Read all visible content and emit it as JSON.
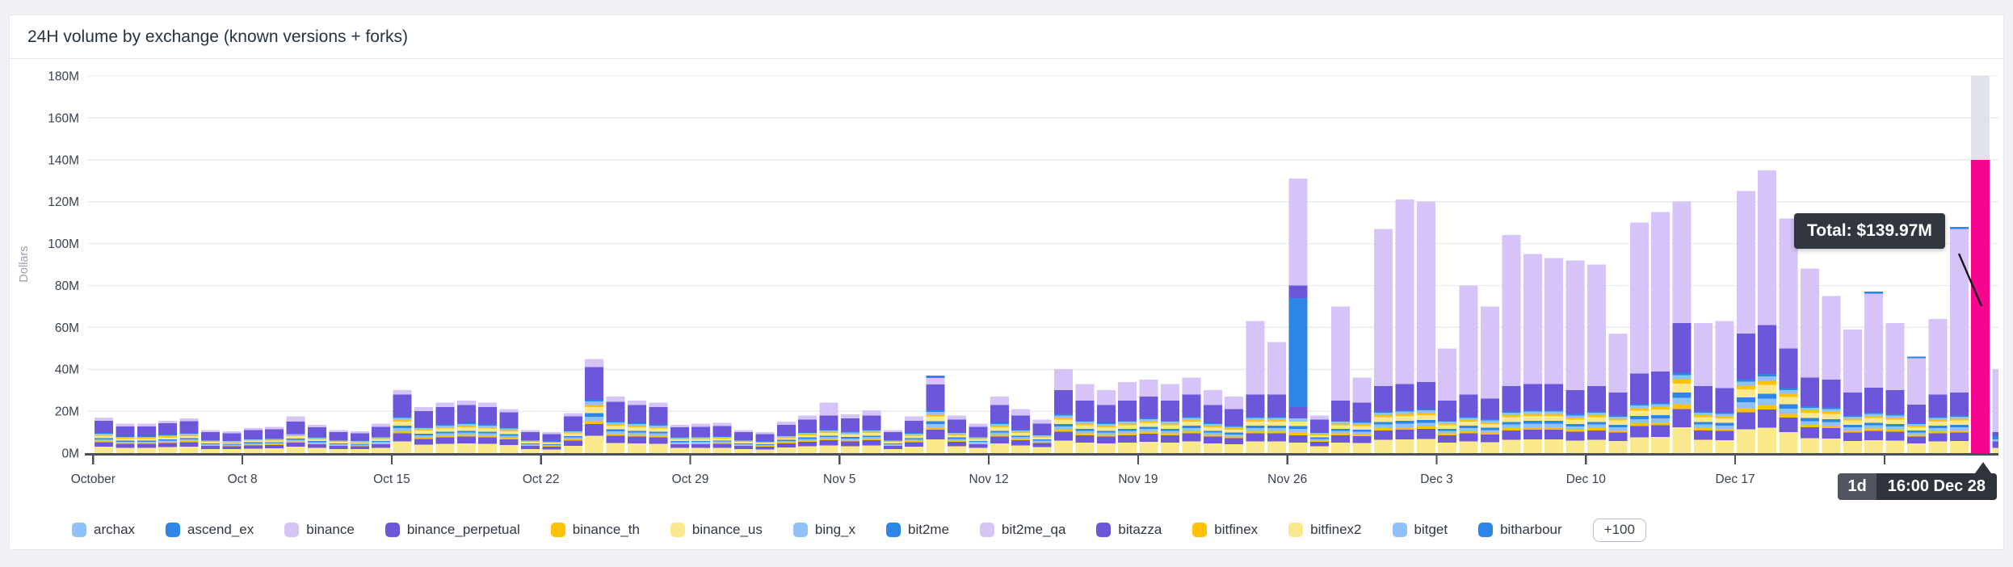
{
  "card": {
    "title": "24H volume by exchange (known versions + forks)"
  },
  "palette": {
    "lightblue": "#8FC2F8",
    "blue": "#2E85E8",
    "lavender": "#D6C4F9",
    "purple": "#6C57DB",
    "gold": "#FFC10A",
    "lightyellow": "#FAE98C",
    "pink": "#F8058F",
    "projection_gray": "#E0E3EA",
    "axis": "#4A505C",
    "grid": "#E9EBEF",
    "tick_text": "#39424E",
    "muted_text": "#99A1AE"
  },
  "chart_data": {
    "type": "bar",
    "stacked": true,
    "title": "24H volume by exchange (known versions + forks)",
    "xlabel": "",
    "ylabel": "Dollars",
    "ylim": [
      0,
      180
    ],
    "grid": true,
    "legend_position": "bottom",
    "y_ticks": [
      {
        "label": "180M",
        "value": 180
      },
      {
        "label": "160M",
        "value": 160
      },
      {
        "label": "140M",
        "value": 140
      },
      {
        "label": "120M",
        "value": 120
      },
      {
        "label": "100M",
        "value": 100
      },
      {
        "label": "80M",
        "value": 80
      },
      {
        "label": "60M",
        "value": 60
      },
      {
        "label": "40M",
        "value": 40
      },
      {
        "label": "20M",
        "value": 20
      },
      {
        "label": "0M",
        "value": 0
      }
    ],
    "x_ticks": [
      {
        "label": "October",
        "day": 0
      },
      {
        "label": "Oct 8",
        "day": 7
      },
      {
        "label": "Oct 15",
        "day": 14
      },
      {
        "label": "Oct 22",
        "day": 21
      },
      {
        "label": "Oct 29",
        "day": 28
      },
      {
        "label": "Nov 5",
        "day": 35
      },
      {
        "label": "Nov 12",
        "day": 42
      },
      {
        "label": "Nov 19",
        "day": 49
      },
      {
        "label": "Nov 26",
        "day": 56
      },
      {
        "label": "Dec 3",
        "day": 63
      },
      {
        "label": "Dec 10",
        "day": 70
      },
      {
        "label": "Dec 17",
        "day": 77
      },
      {
        "label": "",
        "day": 84
      }
    ],
    "series_legend": [
      {
        "label": "archax",
        "color": "lightblue"
      },
      {
        "label": "ascend_ex",
        "color": "blue"
      },
      {
        "label": "binance",
        "color": "lavender"
      },
      {
        "label": "binance_perpetual",
        "color": "purple"
      },
      {
        "label": "binance_th",
        "color": "gold"
      },
      {
        "label": "binance_us",
        "color": "lightyellow"
      },
      {
        "label": "bing_x",
        "color": "lightblue"
      },
      {
        "label": "bit2me",
        "color": "blue"
      },
      {
        "label": "bit2me_qa",
        "color": "lavender"
      },
      {
        "label": "bitazza",
        "color": "purple"
      },
      {
        "label": "bitfinex",
        "color": "gold"
      },
      {
        "label": "bitfinex2",
        "color": "lightyellow"
      },
      {
        "label": "bitget",
        "color": "lightblue"
      },
      {
        "label": "bitharbour",
        "color": "blue"
      }
    ],
    "legend_more": "+100",
    "stack_profile": [
      [
        "lightyellow",
        0.2
      ],
      [
        "purple",
        0.14
      ],
      [
        "gold",
        0.035
      ],
      [
        "lightblue",
        0.05
      ],
      [
        "blue",
        0.04
      ],
      [
        "lightyellow",
        0.07
      ],
      [
        "gold",
        0.03
      ],
      [
        "lightblue",
        0.035
      ],
      [
        "blue",
        0.02
      ],
      [
        "purple",
        0.38
      ]
    ],
    "bars": [
      {
        "d": "Oct 1",
        "t": 17,
        "b": 1.5
      },
      {
        "d": "Oct 2",
        "t": 14,
        "b": 1.2
      },
      {
        "d": "Oct 3",
        "t": 14,
        "b": 1.2
      },
      {
        "d": "Oct 4",
        "t": 15.5,
        "b": 1.3
      },
      {
        "d": "Oct 5",
        "t": 16.5,
        "b": 1.2
      },
      {
        "d": "Oct 6",
        "t": 11,
        "b": 1
      },
      {
        "d": "Oct 7",
        "t": 10.5,
        "b": 1
      },
      {
        "d": "Oct 8",
        "t": 12,
        "b": 1
      },
      {
        "d": "Oct 9",
        "t": 12.5,
        "b": 1.2
      },
      {
        "d": "Oct 10",
        "t": 17.5,
        "b": 2.5
      },
      {
        "d": "Oct 11",
        "t": 13.5,
        "b": 1.2
      },
      {
        "d": "Oct 12",
        "t": 11,
        "b": 1
      },
      {
        "d": "Oct 13",
        "t": 10.5,
        "b": 1
      },
      {
        "d": "Oct 14",
        "t": 14,
        "b": 1.5
      },
      {
        "d": "Oct 15",
        "t": 30,
        "b": 2
      },
      {
        "d": "Oct 16",
        "t": 22,
        "b": 2
      },
      {
        "d": "Oct 17",
        "t": 24,
        "b": 2
      },
      {
        "d": "Oct 18",
        "t": 25,
        "b": 2
      },
      {
        "d": "Oct 19",
        "t": 24,
        "b": 2
      },
      {
        "d": "Oct 20",
        "t": 21,
        "b": 1.5
      },
      {
        "d": "Oct 21",
        "t": 11,
        "b": 1
      },
      {
        "d": "Oct 22",
        "t": 10,
        "b": 1
      },
      {
        "d": "Oct 23",
        "t": 19,
        "b": 1.5
      },
      {
        "d": "Oct 24",
        "t": 45,
        "b": 4
      },
      {
        "d": "Oct 25",
        "t": 27,
        "b": 2.5
      },
      {
        "d": "Oct 26",
        "t": 25,
        "b": 2
      },
      {
        "d": "Oct 27",
        "t": 24,
        "b": 2
      },
      {
        "d": "Oct 28",
        "t": 13.5,
        "b": 1.2
      },
      {
        "d": "Oct 29",
        "t": 14,
        "b": 1.5
      },
      {
        "d": "Oct 30",
        "t": 14.5,
        "b": 1.5
      },
      {
        "d": "Oct 31",
        "t": 11,
        "b": 1
      },
      {
        "d": "Nov 1",
        "t": 10,
        "b": 1
      },
      {
        "d": "Nov 2",
        "t": 15,
        "b": 1.5
      },
      {
        "d": "Nov 3",
        "t": 18,
        "b": 2
      },
      {
        "d": "Nov 4",
        "t": 24,
        "b": 6
      },
      {
        "d": "Nov 5",
        "t": 18.5,
        "b": 2
      },
      {
        "d": "Nov 6",
        "t": 20.5,
        "b": 2.5
      },
      {
        "d": "Nov 7",
        "t": 11,
        "b": 1
      },
      {
        "d": "Nov 8",
        "t": 17.5,
        "b": 2
      },
      {
        "d": "Nov 9",
        "t": 37,
        "b": 3,
        "c": 1.2
      },
      {
        "d": "Nov 10",
        "t": 18,
        "b": 2
      },
      {
        "d": "Nov 11",
        "t": 14,
        "b": 1.5
      },
      {
        "d": "Nov 12",
        "t": 27,
        "b": 4
      },
      {
        "d": "Nov 13",
        "t": 21,
        "b": 3
      },
      {
        "d": "Nov 14",
        "t": 16,
        "b": 2
      },
      {
        "d": "Nov 15",
        "t": 40,
        "b": 10
      },
      {
        "d": "Nov 16",
        "t": 33,
        "b": 8
      },
      {
        "d": "Nov 17",
        "t": 30,
        "b": 7
      },
      {
        "d": "Nov 18",
        "t": 34,
        "b": 9
      },
      {
        "d": "Nov 19",
        "t": 35,
        "b": 8
      },
      {
        "d": "Nov 20",
        "t": 33,
        "b": 8
      },
      {
        "d": "Nov 21",
        "t": 36,
        "b": 8
      },
      {
        "d": "Nov 22",
        "t": 30,
        "b": 7
      },
      {
        "d": "Nov 23",
        "t": 27,
        "b": 6
      },
      {
        "d": "Nov 24",
        "t": 63,
        "b": 35
      },
      {
        "d": "Nov 25",
        "t": 53,
        "b": 25
      },
      {
        "d": "Nov 26",
        "t": 131,
        "s": [
          [
            "lightyellow",
            5
          ],
          [
            "purple",
            3.5
          ],
          [
            "gold",
            1.5
          ],
          [
            "lightblue",
            1.5
          ],
          [
            "blue",
            1.5
          ],
          [
            "lightyellow",
            2
          ],
          [
            "lightblue",
            1.5
          ],
          [
            "purple",
            5.5
          ],
          [
            "blue",
            52
          ],
          [
            "purple",
            6
          ],
          [
            "lavender",
            51
          ]
        ]
      },
      {
        "d": "Nov 27",
        "t": 18,
        "b": 2
      },
      {
        "d": "Nov 28",
        "t": 70,
        "b": 45
      },
      {
        "d": "Nov 29",
        "t": 36,
        "b": 12
      },
      {
        "d": "Nov 30",
        "t": 107,
        "b": 75
      },
      {
        "d": "Dec 1",
        "t": 121,
        "b": 88
      },
      {
        "d": "Dec 2",
        "t": 120,
        "b": 86
      },
      {
        "d": "Dec 3",
        "t": 50,
        "b": 25
      },
      {
        "d": "Dec 4",
        "t": 80,
        "b": 52
      },
      {
        "d": "Dec 5",
        "t": 70,
        "b": 44
      },
      {
        "d": "Dec 6",
        "t": 104,
        "b": 72
      },
      {
        "d": "Dec 7",
        "t": 95,
        "b": 62
      },
      {
        "d": "Dec 8",
        "t": 93,
        "b": 60
      },
      {
        "d": "Dec 9",
        "t": 92,
        "b": 62
      },
      {
        "d": "Dec 10",
        "t": 90,
        "b": 58
      },
      {
        "d": "Dec 11",
        "t": 57,
        "b": 28
      },
      {
        "d": "Dec 12",
        "t": 110,
        "b": 72
      },
      {
        "d": "Dec 13",
        "t": 115,
        "b": 76
      },
      {
        "d": "Dec 14",
        "t": 120,
        "b": 58
      },
      {
        "d": "Dec 15",
        "t": 62,
        "b": 30
      },
      {
        "d": "Dec 16",
        "t": 63,
        "b": 32
      },
      {
        "d": "Dec 17",
        "t": 125,
        "b": 68
      },
      {
        "d": "Dec 18",
        "t": 135,
        "b": 74
      },
      {
        "d": "Dec 19",
        "t": 112,
        "b": 62
      },
      {
        "d": "Dec 20",
        "t": 88,
        "b": 52
      },
      {
        "d": "Dec 21",
        "t": 75,
        "b": 40
      },
      {
        "d": "Dec 22",
        "t": 59,
        "b": 30
      },
      {
        "d": "Dec 23",
        "t": 77,
        "b": 45,
        "c": 0.8
      },
      {
        "d": "Dec 24",
        "t": 62,
        "b": 32
      },
      {
        "d": "Dec 25",
        "t": 46,
        "b": 22,
        "c": 0.8
      },
      {
        "d": "Dec 26",
        "t": 64,
        "b": 36
      },
      {
        "d": "Dec 27",
        "t": 108,
        "b": 78,
        "c": 1
      },
      {
        "d": "Dec 28",
        "t": 139.97,
        "hovered": true
      },
      {
        "d": "Dec 29",
        "partial": true,
        "s": [
          [
            "lightyellow",
            2.5
          ],
          [
            "purple",
            3
          ],
          [
            "lightblue",
            1
          ],
          [
            "blue",
            1.5
          ],
          [
            "purple",
            2
          ],
          [
            "lavender",
            30
          ]
        ]
      }
    ],
    "hover": {
      "tooltip_total": "Total: $139.97M",
      "interval_label": "1d",
      "time_label": "16:00 Dec 28",
      "bar_date": "Dec 28",
      "bar_value_m": 139.97,
      "projection_top": 180
    }
  }
}
